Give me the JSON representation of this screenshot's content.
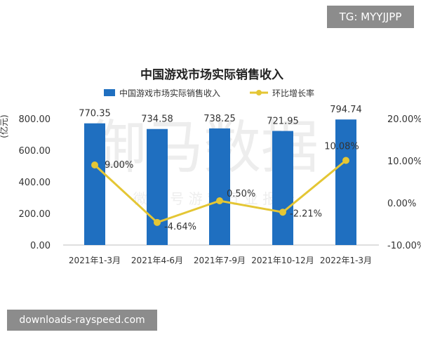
{
  "tag_label": "TG: MYYJJPP",
  "footer_label": "downloads-rayspeed.com",
  "watermark": {
    "main": "御马数据",
    "sub": "微 言 号   游 戏 行 业 报 告"
  },
  "chart_data": {
    "type": "bar",
    "title": "中国游戏市场实际销售收入",
    "categories": [
      "2021年1-3月",
      "2021年4-6月",
      "2021年7-9月",
      "2021年10-12月",
      "2022年1-3月"
    ],
    "series": [
      {
        "name": "中国游戏市场实际销售收入",
        "type": "bar",
        "axis": "left",
        "color": "#1f6fc0",
        "values": [
          770.35,
          734.58,
          738.25,
          721.95,
          794.74
        ],
        "labels": [
          "770.35",
          "734.58",
          "738.25",
          "721.95",
          "794.74"
        ]
      },
      {
        "name": "环比增长率",
        "type": "line",
        "axis": "right",
        "color": "#e4c634",
        "values": [
          9.0,
          -4.64,
          0.5,
          -2.21,
          10.08
        ],
        "labels": [
          "9.00%",
          "-4.64%",
          "0.50%",
          "-2.21%",
          "10.08%"
        ]
      }
    ],
    "ylabel": "(亿元)",
    "ylim": [
      0,
      800
    ],
    "yticks": [
      "0.00",
      "200.00",
      "400.00",
      "600.00",
      "800.00"
    ],
    "y2lim": [
      -10,
      20
    ],
    "y2ticks": [
      "-10.00%",
      "0.00%",
      "10.00%",
      "20.00%"
    ],
    "legend_position": "top"
  }
}
